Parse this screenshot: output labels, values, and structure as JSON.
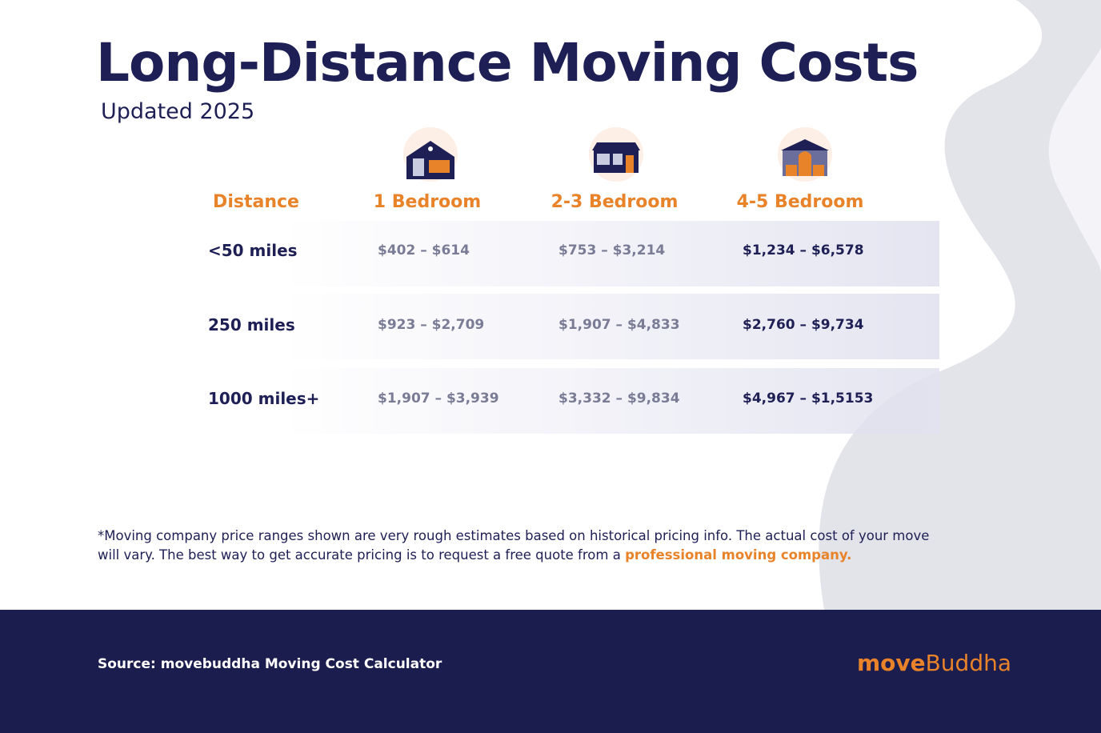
{
  "header": {
    "title": "Long-Distance Moving Costs",
    "subtitle": "Updated 2025"
  },
  "table": {
    "columns": [
      "Distance",
      "1 Bedroom",
      "2-3 Bedroom",
      "4-5 Bedroom"
    ],
    "rows": [
      [
        "<50 miles",
        "$402 – $614",
        "$753 – $3,214",
        "$1,234 – $6,578"
      ],
      [
        "250 miles",
        "$923 – $2,709",
        "$1,907 – $4,833",
        "$2,760 – $9,734"
      ],
      [
        "1000 miles+",
        "$1,907 – $3,939",
        "$3,332 – $9,834",
        "$4,967 – $1,5153"
      ]
    ]
  },
  "footnote": {
    "text": "*Moving company price ranges shown are very rough estimates based on historical pricing info. The actual cost of your move will vary. The best way to get accurate pricing is to request a free quote from a ",
    "link": "professional moving company."
  },
  "footer": {
    "source": "Source: movebuddha Moving Cost Calculator",
    "brand": [
      "move",
      "Buddha"
    ]
  }
}
